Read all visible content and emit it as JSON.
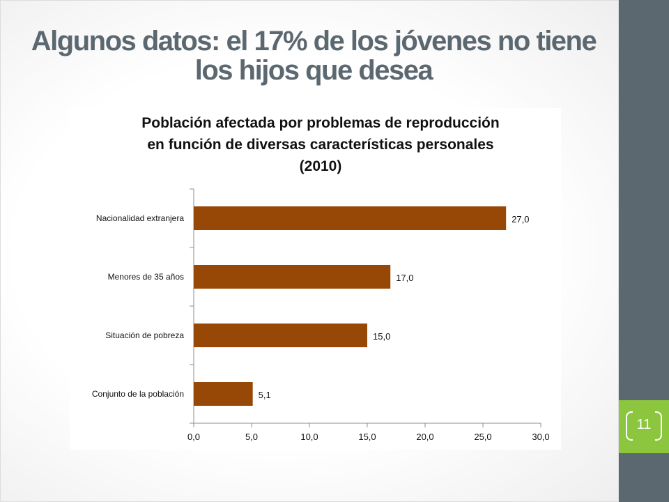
{
  "slide": {
    "title": "Algunos datos: el 17% de los jóvenes no tiene los hijos que desea",
    "page_number": "11",
    "colors": {
      "sidebar": "#5c6870",
      "badge": "#8cc63e",
      "title": "#5c6870"
    }
  },
  "chart_data": {
    "type": "bar",
    "orientation": "horizontal",
    "title": "Población afectada por problemas de reproducción\nen función de diversas características personales\n(2010)",
    "categories": [
      "Nacionalidad extranjera",
      "Menores de 35 años",
      "Situación de pobreza",
      "Conjunto de la población"
    ],
    "values": [
      27.0,
      17.0,
      15.0,
      5.1
    ],
    "value_labels": [
      "27,0",
      "17,0",
      "15,0",
      "5,1"
    ],
    "xlim": [
      0,
      30
    ],
    "x_ticks": [
      "0,0",
      "5,0",
      "10,0",
      "15,0",
      "20,0",
      "25,0",
      "30,0"
    ],
    "bar_color": "#974806",
    "grid": false,
    "legend": "none"
  }
}
